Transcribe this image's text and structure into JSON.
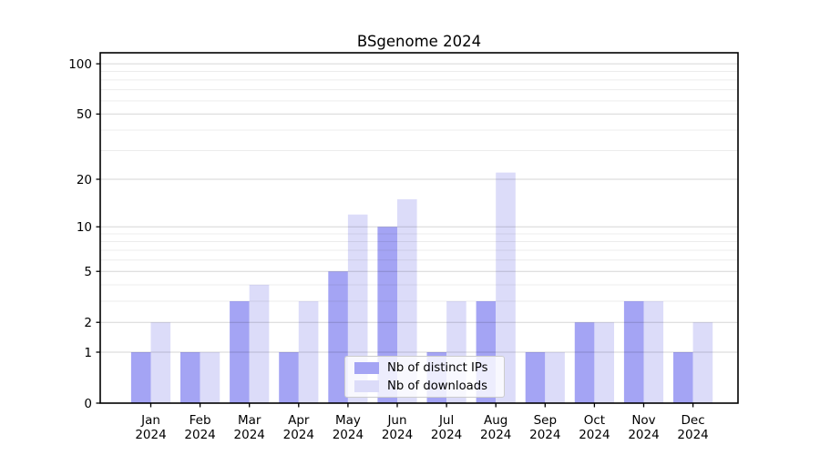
{
  "chart_data": {
    "type": "bar",
    "title": "BSgenome 2024",
    "categories": [
      "Jan",
      "Feb",
      "Mar",
      "Apr",
      "May",
      "Jun",
      "Jul",
      "Aug",
      "Sep",
      "Oct",
      "Nov",
      "Dec"
    ],
    "x_year_label": "2024",
    "series": [
      {
        "name": "Nb of distinct IPs",
        "color": "#a4a4f4",
        "values": [
          1,
          1,
          3,
          1,
          5,
          10,
          1,
          3,
          1,
          2,
          3,
          1
        ]
      },
      {
        "name": "Nb of downloads",
        "color": "#dcdcf9",
        "values": [
          2,
          1,
          4,
          3,
          12,
          15,
          3,
          22,
          1,
          2,
          3,
          2
        ]
      }
    ],
    "yscale": "log1p",
    "ylabel": "",
    "xlabel": "",
    "y_major_ticks": [
      0,
      1,
      2,
      5,
      10,
      20,
      50,
      100
    ],
    "y_minor_gridlines": [
      3,
      4,
      6,
      7,
      8,
      9,
      30,
      40,
      60,
      70,
      80,
      90
    ],
    "ylim": [
      0,
      116
    ],
    "grid": true,
    "legend_position": "lower center"
  }
}
